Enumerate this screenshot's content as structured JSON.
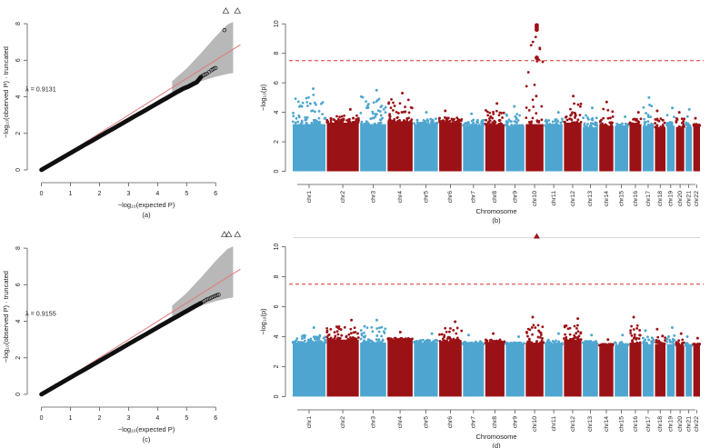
{
  "colors": {
    "chr_odd": "#4ea6d0",
    "chr_even": "#9b1216",
    "ref_line": "#e07a7a",
    "threshold": "#d9302f",
    "ci_band": "#b8b8b8",
    "points": "#111111"
  },
  "chart_data": [
    {
      "type": "scatter",
      "subtype": "qq-plot",
      "panel": "(a)",
      "xlabel": "−log₁₀(expected P)",
      "ylabel": "−log₁₀(observed P) · truncated",
      "xlim": [
        -0.3,
        6.9
      ],
      "ylim": [
        -0.4,
        8.9
      ],
      "xticks": [
        0,
        1,
        2,
        3,
        4,
        5,
        6
      ],
      "yticks": [
        0,
        2,
        4,
        6,
        8
      ],
      "lambda_label": "λ = 0.9131",
      "lambda": 0.9131,
      "ref_line_slope": 1,
      "ci_band": {
        "x": [
          4.5,
          5.0,
          5.5,
          6.0,
          6.4,
          6.6
        ],
        "lower": [
          4.2,
          4.55,
          4.85,
          5.1,
          5.25,
          5.3
        ],
        "upper": [
          4.85,
          5.55,
          6.4,
          7.3,
          7.95,
          8.1
        ]
      },
      "points": {
        "x": [
          0,
          0.25,
          0.5,
          0.75,
          1,
          1.25,
          1.5,
          1.75,
          2,
          2.25,
          2.5,
          2.75,
          3,
          3.25,
          3.5,
          3.75,
          4,
          4.15,
          4.3,
          4.45,
          4.6,
          4.75,
          4.9,
          5.05,
          5.2,
          5.35,
          5.5,
          5.6,
          5.7,
          5.85,
          5.95,
          6.05,
          6.3
        ],
        "y": [
          0,
          0.23,
          0.46,
          0.69,
          0.92,
          1.15,
          1.38,
          1.6,
          1.83,
          2.06,
          2.28,
          2.51,
          2.74,
          2.97,
          3.19,
          3.42,
          3.65,
          3.79,
          3.92,
          4.06,
          4.2,
          4.33,
          4.46,
          4.55,
          4.68,
          4.8,
          5.1,
          5.2,
          5.27,
          5.45,
          5.55,
          5.6,
          7.65
        ]
      },
      "truncated_points": {
        "x": [
          6.35,
          6.75
        ],
        "y": [
          8.7,
          8.7
        ],
        "marker": "△"
      }
    },
    {
      "type": "scatter",
      "subtype": "manhattan",
      "panel": "(b)",
      "xlabel": "Chromosome",
      "ylabel": "−log₁₀(p)",
      "ylim": [
        -0.4,
        11
      ],
      "yticks": [
        0,
        2,
        4,
        6,
        8,
        10
      ],
      "threshold": 7.5,
      "categories": [
        "chr1",
        "chr2",
        "chr3",
        "chr4",
        "chr5",
        "chr6",
        "chr7",
        "chr8",
        "chr9",
        "chr10",
        "chr11",
        "chr12",
        "chr13",
        "chr14",
        "chr15",
        "chr16",
        "chr17",
        "chr18",
        "chr19",
        "chr20",
        "chr21",
        "chr22"
      ],
      "chr_widths": [
        249,
        243,
        198,
        191,
        181,
        171,
        159,
        146,
        141,
        135,
        135,
        133,
        115,
        107,
        102,
        90,
        83,
        80,
        59,
        63,
        48,
        51
      ],
      "base": [
        3.2,
        3.3,
        3.2,
        3.4,
        3.2,
        3.3,
        3.1,
        3.2,
        3.1,
        3.2,
        3.1,
        3.3,
        3.0,
        3.1,
        3.0,
        3.2,
        3.1,
        3.0,
        3.1,
        3.0,
        3.0,
        3.1
      ],
      "peaks": [
        5.6,
        4.2,
        5.5,
        5.3,
        4.0,
        4.1,
        3.9,
        4.6,
        4.4,
        9.8,
        4.0,
        5.1,
        4.3,
        4.7,
        3.7,
        4.0,
        5.0,
        4.1,
        4.3,
        4.0,
        4.2,
        3.6
      ],
      "highlight": {
        "chr": "chr10",
        "values": [
          9.9,
          9.75,
          9.6,
          7.7
        ],
        "marker": "circle"
      }
    },
    {
      "type": "scatter",
      "subtype": "qq-plot",
      "panel": "(c)",
      "xlabel": "−log₁₀(expected P)",
      "ylabel": "−log₁₀(observed P) · truncated",
      "xlim": [
        -0.3,
        6.9
      ],
      "ylim": [
        -0.4,
        8.9
      ],
      "xticks": [
        0,
        1,
        2,
        3,
        4,
        5,
        6
      ],
      "yticks": [
        0,
        2,
        4,
        6,
        8
      ],
      "lambda_label": "λ = 0.9155",
      "lambda": 0.9155,
      "ref_line_slope": 1,
      "ci_band": {
        "x": [
          4.5,
          5.0,
          5.5,
          6.0,
          6.4,
          6.6
        ],
        "lower": [
          4.2,
          4.55,
          4.85,
          5.1,
          5.25,
          5.3
        ],
        "upper": [
          4.85,
          5.55,
          6.4,
          7.3,
          7.95,
          8.1
        ]
      },
      "points": {
        "x": [
          0,
          0.25,
          0.5,
          0.75,
          1,
          1.25,
          1.5,
          1.75,
          2,
          2.25,
          2.5,
          2.75,
          3,
          3.25,
          3.5,
          3.75,
          4,
          4.15,
          4.3,
          4.45,
          4.6,
          4.75,
          4.9,
          5.05,
          5.2,
          5.35,
          5.5,
          5.6,
          5.7,
          5.8,
          5.9,
          6.0,
          6.1
        ],
        "y": [
          0,
          0.23,
          0.46,
          0.69,
          0.92,
          1.15,
          1.37,
          1.6,
          1.83,
          2.06,
          2.29,
          2.52,
          2.75,
          2.98,
          3.2,
          3.43,
          3.66,
          3.8,
          3.93,
          4.07,
          4.2,
          4.33,
          4.47,
          4.6,
          4.74,
          4.87,
          5.0,
          5.1,
          5.2,
          5.25,
          5.33,
          5.4,
          5.45
        ]
      },
      "truncated_points": {
        "x": [
          6.3,
          6.45,
          6.75
        ],
        "y": [
          8.75,
          8.75,
          8.75
        ],
        "marker": "△"
      }
    },
    {
      "type": "scatter",
      "subtype": "manhattan",
      "panel": "(d)",
      "xlabel": "Chromosome",
      "ylabel": "−log₁₀(p)",
      "ylim": [
        -0.4,
        11
      ],
      "yticks": [
        0,
        2,
        4,
        6,
        8,
        10
      ],
      "threshold": 7.5,
      "truncation_line": 10.6,
      "categories": [
        "chr1",
        "chr2",
        "chr3",
        "chr4",
        "chr5",
        "chr6",
        "chr7",
        "chr8",
        "chr9",
        "chr10",
        "chr11",
        "chr12",
        "chr13",
        "chr14",
        "chr15",
        "chr16",
        "chr17",
        "chr18",
        "chr19",
        "chr20",
        "chr21",
        "chr22"
      ],
      "chr_widths": [
        249,
        243,
        198,
        191,
        181,
        171,
        159,
        146,
        141,
        135,
        135,
        133,
        115,
        107,
        102,
        90,
        83,
        80,
        59,
        63,
        48,
        51
      ],
      "base": [
        3.6,
        3.8,
        3.6,
        3.8,
        3.6,
        3.7,
        3.5,
        3.6,
        3.5,
        3.6,
        3.5,
        3.8,
        3.5,
        3.5,
        3.4,
        3.6,
        3.5,
        3.5,
        3.5,
        3.4,
        3.4,
        3.5
      ],
      "peaks": [
        4.6,
        5.1,
        5.1,
        4.3,
        4.2,
        5.0,
        4.1,
        4.2,
        4.0,
        5.3,
        4.2,
        5.2,
        4.1,
        3.8,
        4.1,
        5.3,
        4.4,
        4.5,
        4.6,
        4.2,
        4.0,
        3.9
      ],
      "highlight": {
        "chr": "chr10",
        "values": [
          10.7
        ],
        "marker": "triangle"
      }
    }
  ]
}
